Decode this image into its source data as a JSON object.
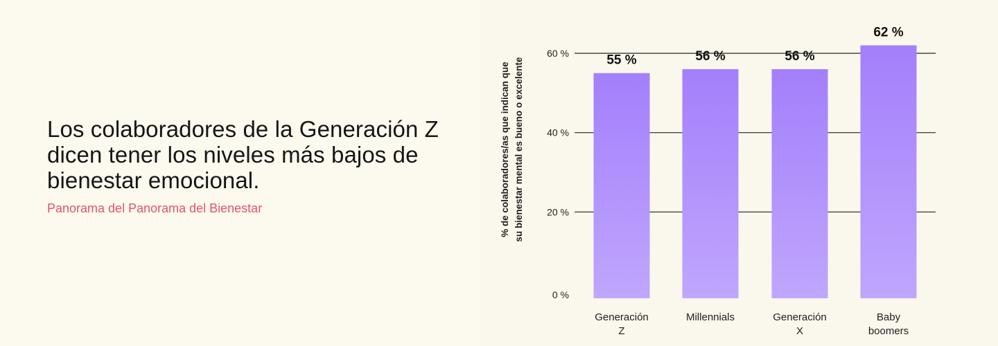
{
  "headline": "Los colaboradores de la Generación Z dicen tener los niveles más bajos de bienestar emocional.",
  "source": "Panorama del Panorama del Bienestar",
  "chart_data": {
    "type": "bar",
    "title": "",
    "categories": [
      [
        "Generación",
        "Z"
      ],
      [
        "Millennials"
      ],
      [
        "Generación",
        "X"
      ],
      [
        "Baby",
        "boomers"
      ]
    ],
    "values": [
      55,
      56,
      56,
      62
    ],
    "value_labels": [
      "55 %",
      "56 %",
      "56 %",
      "62 %"
    ],
    "yticks": [
      0,
      20,
      40,
      60
    ],
    "ytick_labels": [
      "0 %",
      "20 %",
      "40 %",
      "60 %"
    ],
    "ylim": [
      0,
      60
    ],
    "ylabel": [
      "% de colaboradores/as que indican que",
      "su bienestar mental es bueno o excelente"
    ],
    "xlabel": "",
    "grid": true,
    "colors": {
      "bar_top": "#a37ffb",
      "bar_bottom": "#c0a6fd",
      "grid": "#222222"
    }
  }
}
